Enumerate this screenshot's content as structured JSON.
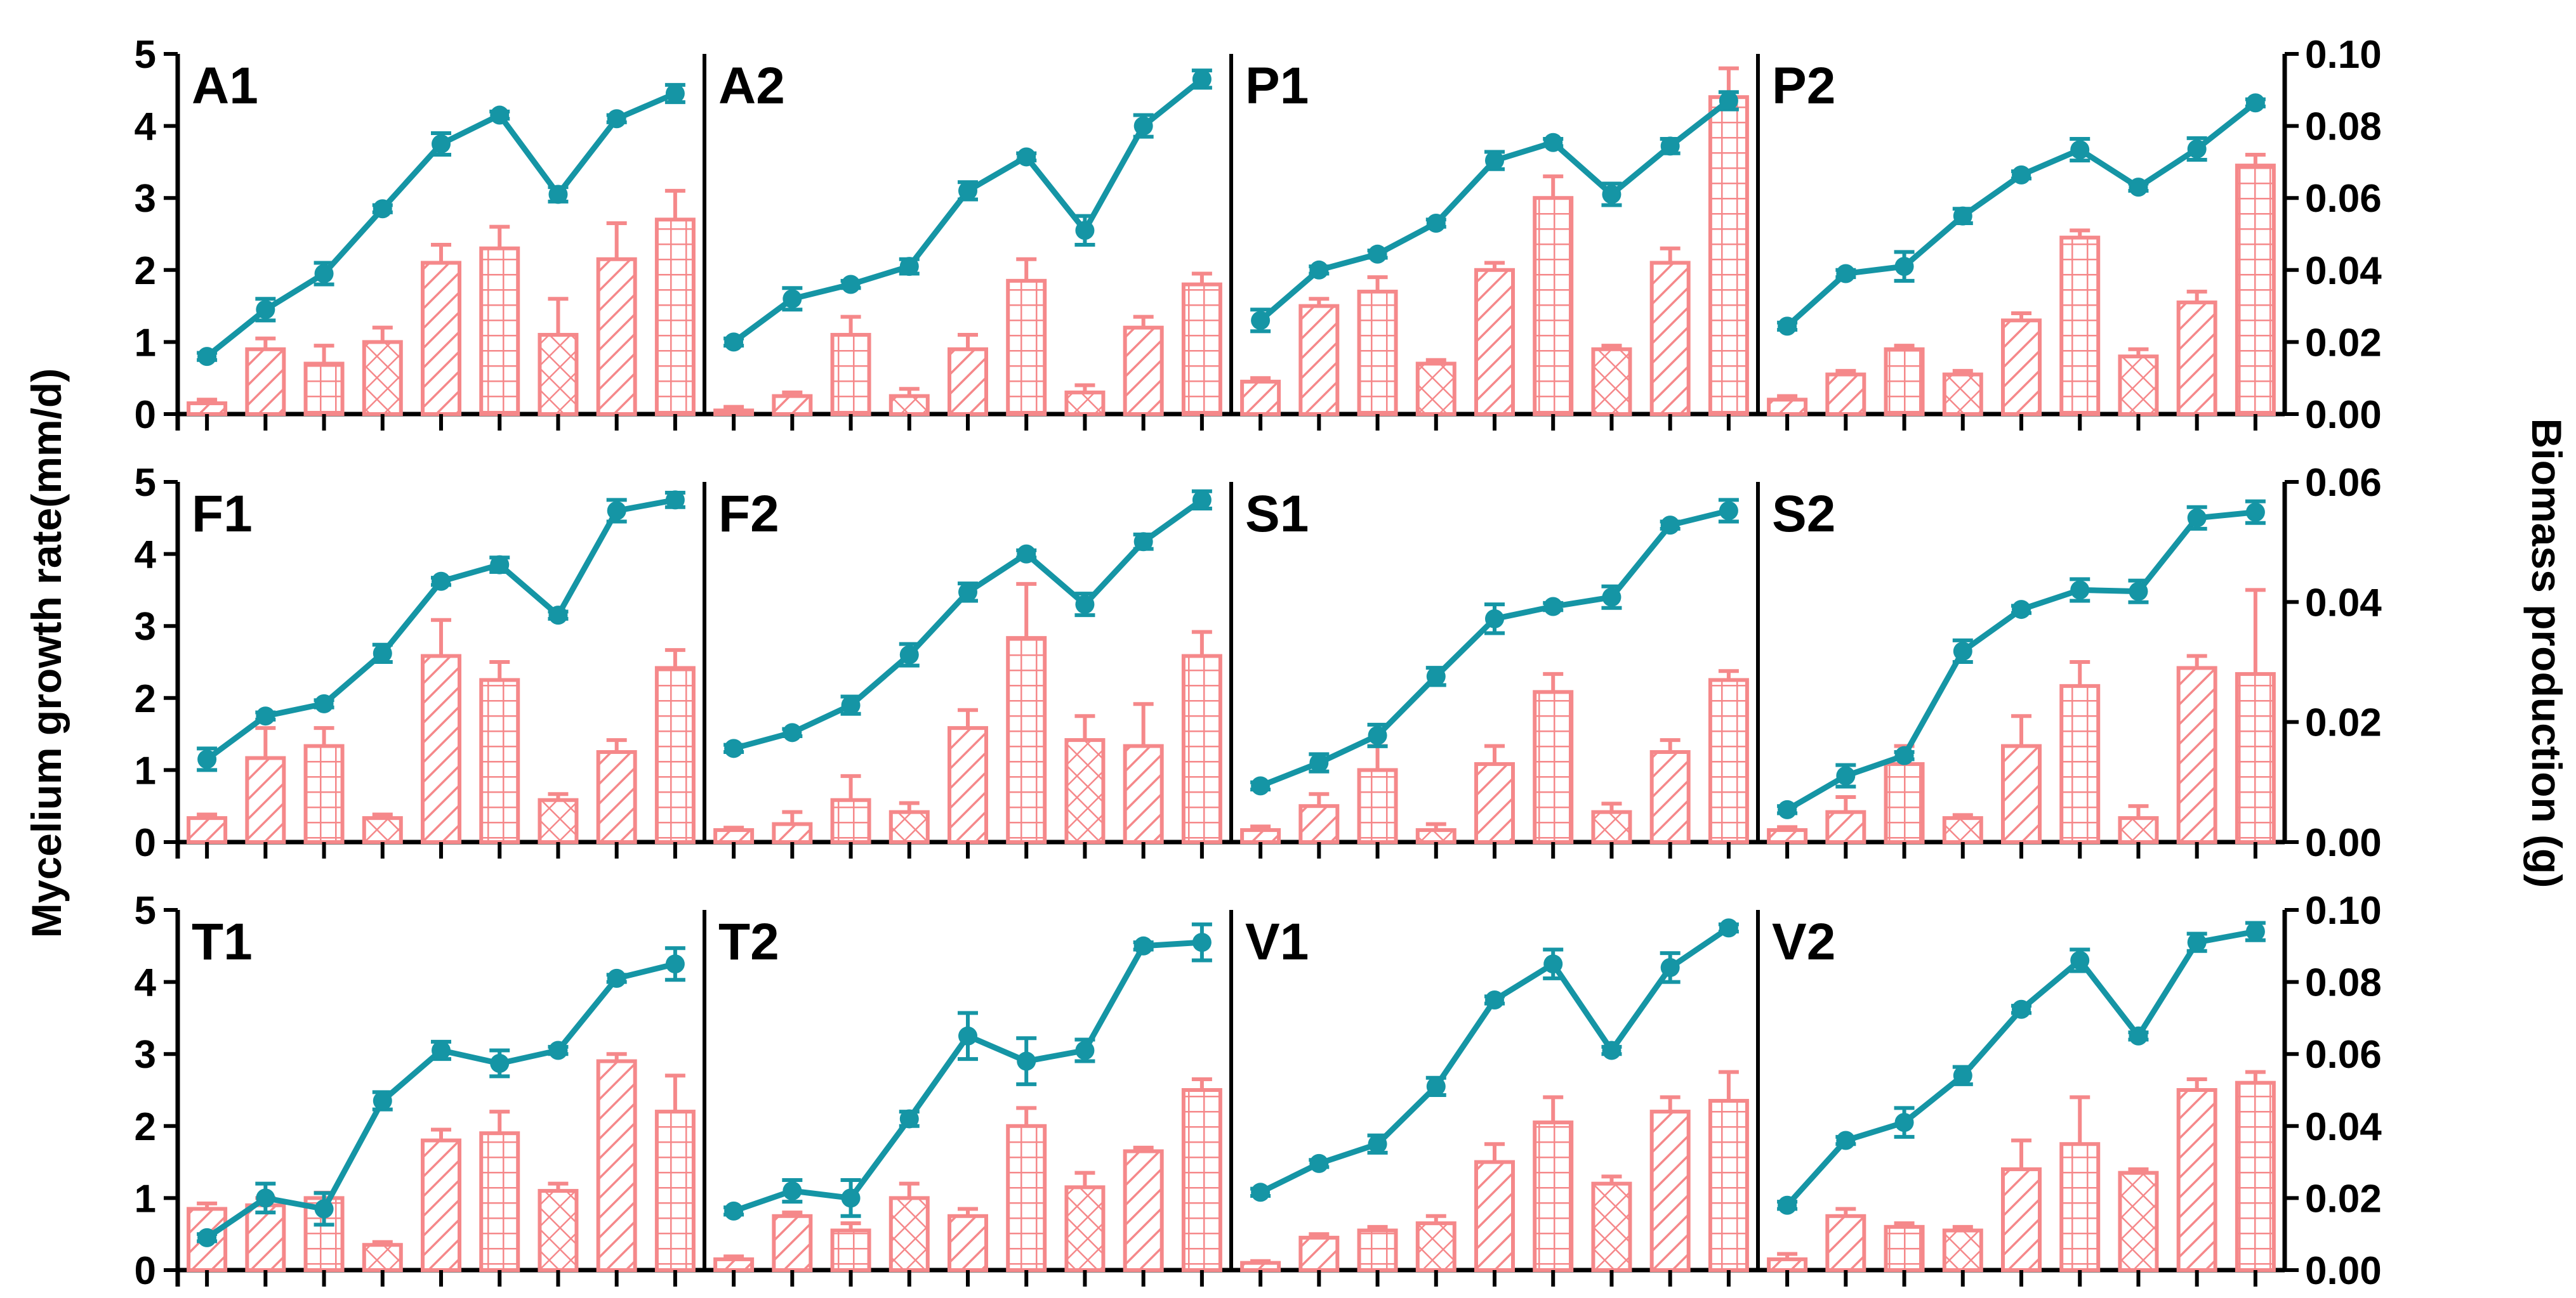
{
  "colors": {
    "bar": "#f5888a",
    "line": "#1595a5",
    "axis": "#000000",
    "background": "#ffffff"
  },
  "chart_data": {
    "type": "bar+line",
    "left_axis_title": "Mycelium growth rate(mm/d)",
    "right_axis_title": "Biomass production (g)",
    "left_ylim": [
      0,
      5
    ],
    "left_ticks": [
      "0",
      "1",
      "2",
      "3",
      "4",
      "5"
    ],
    "right_axes": [
      {
        "ylim": [
          0,
          0.1
        ],
        "ticks": [
          "0.00",
          "0.02",
          "0.04",
          "0.06",
          "0.08",
          "0.10"
        ]
      },
      {
        "ylim": [
          0,
          0.06
        ],
        "ticks": [
          "0.00",
          "0.02",
          "0.04",
          "0.06"
        ]
      },
      {
        "ylim": [
          0,
          0.1
        ],
        "ticks": [
          "0.00",
          "0.02",
          "0.04",
          "0.06",
          "0.08",
          "0.10"
        ]
      }
    ],
    "bar_patterns": [
      "diag",
      "diag",
      "grid",
      "cross",
      "diag",
      "grid",
      "cross",
      "diag",
      "grid"
    ],
    "panels": [
      {
        "label": "A1",
        "bars": [
          0.003,
          0.018,
          0.014,
          0.02,
          0.042,
          0.046,
          0.022,
          0.043,
          0.054
        ],
        "bar_err": [
          0.001,
          0.003,
          0.005,
          0.004,
          0.005,
          0.006,
          0.01,
          0.01,
          0.008
        ],
        "line": [
          0.8,
          1.45,
          1.95,
          2.85,
          3.75,
          4.15,
          3.05,
          4.1,
          4.45
        ],
        "line_err": [
          0.05,
          0.15,
          0.15,
          0.05,
          0.15,
          0.05,
          0.1,
          0.05,
          0.12
        ]
      },
      {
        "label": "A2",
        "bars": [
          0.001,
          0.005,
          0.022,
          0.005,
          0.018,
          0.037,
          0.006,
          0.024,
          0.036
        ],
        "bar_err": [
          0.001,
          0.001,
          0.005,
          0.002,
          0.004,
          0.006,
          0.002,
          0.003,
          0.003
        ],
        "line": [
          1.0,
          1.6,
          1.8,
          2.05,
          3.1,
          3.57,
          2.55,
          4.0,
          4.65
        ],
        "line_err": [
          0.05,
          0.15,
          0.05,
          0.1,
          0.12,
          0.05,
          0.2,
          0.15,
          0.12
        ]
      },
      {
        "label": "P1",
        "bars": [
          0.009,
          0.03,
          0.034,
          0.014,
          0.04,
          0.06,
          0.018,
          0.042,
          0.088
        ],
        "bar_err": [
          0.001,
          0.002,
          0.004,
          0.001,
          0.002,
          0.006,
          0.001,
          0.004,
          0.008
        ],
        "line": [
          1.3,
          2.0,
          2.22,
          2.65,
          3.52,
          3.77,
          3.05,
          3.72,
          4.35
        ],
        "line_err": [
          0.15,
          0.05,
          0.05,
          0.05,
          0.12,
          0.05,
          0.15,
          0.1,
          0.12
        ]
      },
      {
        "label": "P2",
        "bars": [
          0.004,
          0.011,
          0.018,
          0.011,
          0.026,
          0.049,
          0.016,
          0.031,
          0.069
        ],
        "bar_err": [
          0.001,
          0.001,
          0.001,
          0.001,
          0.002,
          0.002,
          0.002,
          0.003,
          0.003
        ],
        "line": [
          1.22,
          1.95,
          2.05,
          2.75,
          3.32,
          3.67,
          3.15,
          3.68,
          4.32
        ],
        "line_err": [
          0.05,
          0.05,
          0.2,
          0.1,
          0.05,
          0.15,
          0.05,
          0.15,
          0.05
        ]
      },
      {
        "label": "F1",
        "bars": [
          0.004,
          0.014,
          0.016,
          0.004,
          0.031,
          0.027,
          0.007,
          0.015,
          0.029
        ],
        "bar_err": [
          0.0006,
          0.005,
          0.003,
          0.0006,
          0.006,
          0.003,
          0.001,
          0.002,
          0.003
        ],
        "line": [
          1.15,
          1.75,
          1.92,
          2.62,
          3.62,
          3.85,
          3.15,
          4.6,
          4.75
        ],
        "line_err": [
          0.15,
          0.05,
          0.05,
          0.12,
          0.05,
          0.1,
          0.05,
          0.15,
          0.1
        ]
      },
      {
        "label": "F2",
        "bars": [
          0.002,
          0.003,
          0.007,
          0.005,
          0.019,
          0.034,
          0.017,
          0.016,
          0.031
        ],
        "bar_err": [
          0.0004,
          0.002,
          0.004,
          0.0015,
          0.003,
          0.009,
          0.004,
          0.007,
          0.004
        ],
        "line": [
          1.3,
          1.52,
          1.9,
          2.6,
          3.47,
          4.0,
          3.3,
          4.17,
          4.75
        ],
        "line_err": [
          0.05,
          0.05,
          0.12,
          0.15,
          0.12,
          0.05,
          0.15,
          0.1,
          0.12
        ]
      },
      {
        "label": "S1",
        "bars": [
          0.002,
          0.006,
          0.012,
          0.002,
          0.013,
          0.025,
          0.005,
          0.015,
          0.027
        ],
        "bar_err": [
          0.0006,
          0.002,
          0.004,
          0.001,
          0.003,
          0.003,
          0.0014,
          0.002,
          0.0015
        ],
        "line": [
          0.78,
          1.1,
          1.48,
          2.3,
          3.1,
          3.27,
          3.4,
          4.4,
          4.6
        ],
        "line_err": [
          0.05,
          0.12,
          0.15,
          0.12,
          0.2,
          0.05,
          0.15,
          0.05,
          0.15
        ]
      },
      {
        "label": "S2",
        "bars": [
          0.002,
          0.005,
          0.013,
          0.004,
          0.016,
          0.026,
          0.004,
          0.029,
          0.028
        ],
        "bar_err": [
          0.0005,
          0.0025,
          0.003,
          0.0005,
          0.005,
          0.004,
          0.002,
          0.002,
          0.014
        ],
        "line": [
          0.45,
          0.92,
          1.2,
          2.65,
          3.23,
          3.5,
          3.48,
          4.5,
          4.58
        ],
        "line_err": [
          0.05,
          0.15,
          0.05,
          0.15,
          0.05,
          0.15,
          0.15,
          0.15,
          0.15
        ]
      },
      {
        "label": "T1",
        "bars": [
          0.017,
          0.018,
          0.02,
          0.007,
          0.036,
          0.038,
          0.022,
          0.058,
          0.044
        ],
        "bar_err": [
          0.0015,
          0.002,
          0.0015,
          0.0008,
          0.003,
          0.006,
          0.002,
          0.002,
          0.01
        ],
        "line": [
          0.45,
          1.0,
          0.85,
          2.35,
          3.05,
          2.87,
          3.05,
          4.05,
          4.25
        ],
        "line_err": [
          0.05,
          0.2,
          0.22,
          0.12,
          0.12,
          0.18,
          0.05,
          0.05,
          0.22
        ]
      },
      {
        "label": "T2",
        "bars": [
          0.003,
          0.015,
          0.011,
          0.02,
          0.015,
          0.04,
          0.023,
          0.033,
          0.05
        ],
        "bar_err": [
          0.0008,
          0.001,
          0.002,
          0.004,
          0.002,
          0.005,
          0.004,
          0.001,
          0.003
        ],
        "line": [
          0.82,
          1.1,
          1.0,
          2.1,
          3.25,
          2.9,
          3.05,
          4.5,
          4.55
        ],
        "line_err": [
          0.05,
          0.15,
          0.25,
          0.1,
          0.32,
          0.32,
          0.15,
          0.05,
          0.25
        ]
      },
      {
        "label": "V1",
        "bars": [
          0.002,
          0.009,
          0.011,
          0.013,
          0.03,
          0.041,
          0.024,
          0.044,
          0.047
        ],
        "bar_err": [
          0.0005,
          0.001,
          0.001,
          0.002,
          0.005,
          0.007,
          0.002,
          0.004,
          0.008
        ],
        "line": [
          1.08,
          1.48,
          1.75,
          2.55,
          3.75,
          4.25,
          3.05,
          4.2,
          4.75
        ],
        "line_err": [
          0.05,
          0.05,
          0.12,
          0.12,
          0.05,
          0.2,
          0.05,
          0.2,
          0.05
        ]
      },
      {
        "label": "V2",
        "bars": [
          0.003,
          0.015,
          0.012,
          0.011,
          0.028,
          0.035,
          0.027,
          0.05,
          0.052
        ],
        "bar_err": [
          0.0015,
          0.002,
          0.001,
          0.001,
          0.008,
          0.013,
          0.001,
          0.003,
          0.003
        ],
        "line": [
          0.9,
          1.8,
          2.05,
          2.7,
          3.62,
          4.3,
          3.25,
          4.55,
          4.7
        ],
        "line_err": [
          0.05,
          0.05,
          0.2,
          0.12,
          0.05,
          0.15,
          0.05,
          0.12,
          0.12
        ]
      }
    ]
  }
}
